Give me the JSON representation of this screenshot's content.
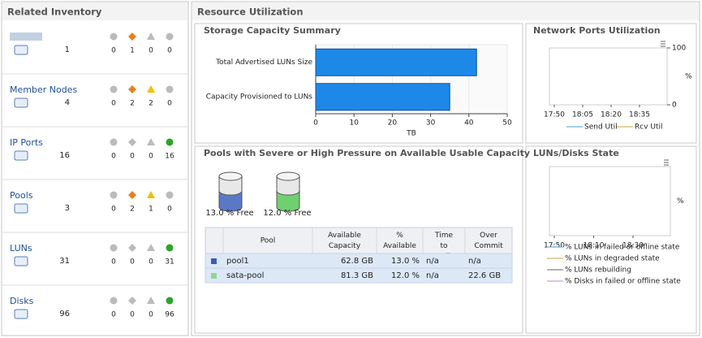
{
  "related_inventory": {
    "title": "Related Inventory",
    "items": [
      {
        "count": "1",
        "statuses": [
          "0",
          "1",
          "0",
          "0"
        ]
      },
      {
        "name": "Member Nodes",
        "count": "4",
        "statuses": [
          "0",
          "2",
          "2",
          "0"
        ]
      },
      {
        "name": "IP Ports",
        "count": "16",
        "statuses": [
          "0",
          "0",
          "0",
          "16"
        ]
      },
      {
        "name": "Pools",
        "count": "3",
        "statuses": [
          "0",
          "2",
          "1",
          "0"
        ]
      },
      {
        "name": "LUNs",
        "count": "31",
        "statuses": [
          "0",
          "0",
          "0",
          "31"
        ]
      },
      {
        "name": "Disks",
        "count": "96",
        "statuses": [
          "0",
          "0",
          "0",
          "96"
        ]
      }
    ]
  },
  "resource_utilization": {
    "title": "Resource Utilization",
    "storage_capacity": {
      "title": "Storage Capacity Summary",
      "chart": {
        "type": "bar",
        "orientation": "horizontal",
        "categories": [
          "Total Advertised LUNs Size",
          "Capacity Provisioned to LUNs"
        ],
        "values": [
          42,
          35
        ],
        "color": "#1e88e8",
        "xlim": [
          0,
          50
        ],
        "xticks": [
          0,
          10,
          20,
          30,
          40,
          50
        ],
        "x_label": "TB",
        "grid": true
      }
    },
    "network_ports": {
      "title": "Network Ports Utilization",
      "chart": {
        "type": "line",
        "categories": [
          "17:50",
          "18:05",
          "18:20",
          "18:35"
        ],
        "ylim": [
          0,
          100
        ],
        "yticks": [
          0,
          100
        ],
        "y_label": "%",
        "series": [
          {
            "name": "Send Util",
            "color": "#4a9fd8"
          },
          {
            "name": "Rcv Util",
            "color": "#c9a040"
          }
        ]
      }
    },
    "pools_pressure": {
      "title": "Pools with Severe or High Pressure on Available Usable Capacity",
      "gauges": [
        {
          "label": "13.0 % Free",
          "color": "#5a78c4"
        },
        {
          "label": "12.0 % Free",
          "color": "#6fd06f"
        }
      ],
      "table": {
        "columns": [
          "Pool",
          "Available Capacity",
          "% Available",
          "Time to Full",
          "Over Commit"
        ],
        "rows": [
          {
            "color": "#3a5db0",
            "cells": [
              "pool1",
              "62.8 GB",
              "13.0 %",
              "n/a",
              "n/a"
            ]
          },
          {
            "color": "#8ed88e",
            "cells": [
              "sata-pool",
              "81.3 GB",
              "12.0 %",
              "n/a",
              "22.6 GB"
            ]
          }
        ]
      }
    },
    "luns_disks_state": {
      "title": "LUNs/Disks State",
      "chart": {
        "type": "line",
        "categories": [
          "17:50",
          "18:10",
          "18:30"
        ],
        "y_label": "%",
        "series": [
          {
            "name": "% LUNs in failed or offline state",
            "color": "#4a9fd8"
          },
          {
            "name": "% LUNs in degraded state",
            "color": "#c9a040"
          },
          {
            "name": "% LUNs rebuilding",
            "color": "#666666"
          },
          {
            "name": "% Disks in failed or offline state",
            "color": "#c080d8"
          }
        ]
      }
    }
  }
}
